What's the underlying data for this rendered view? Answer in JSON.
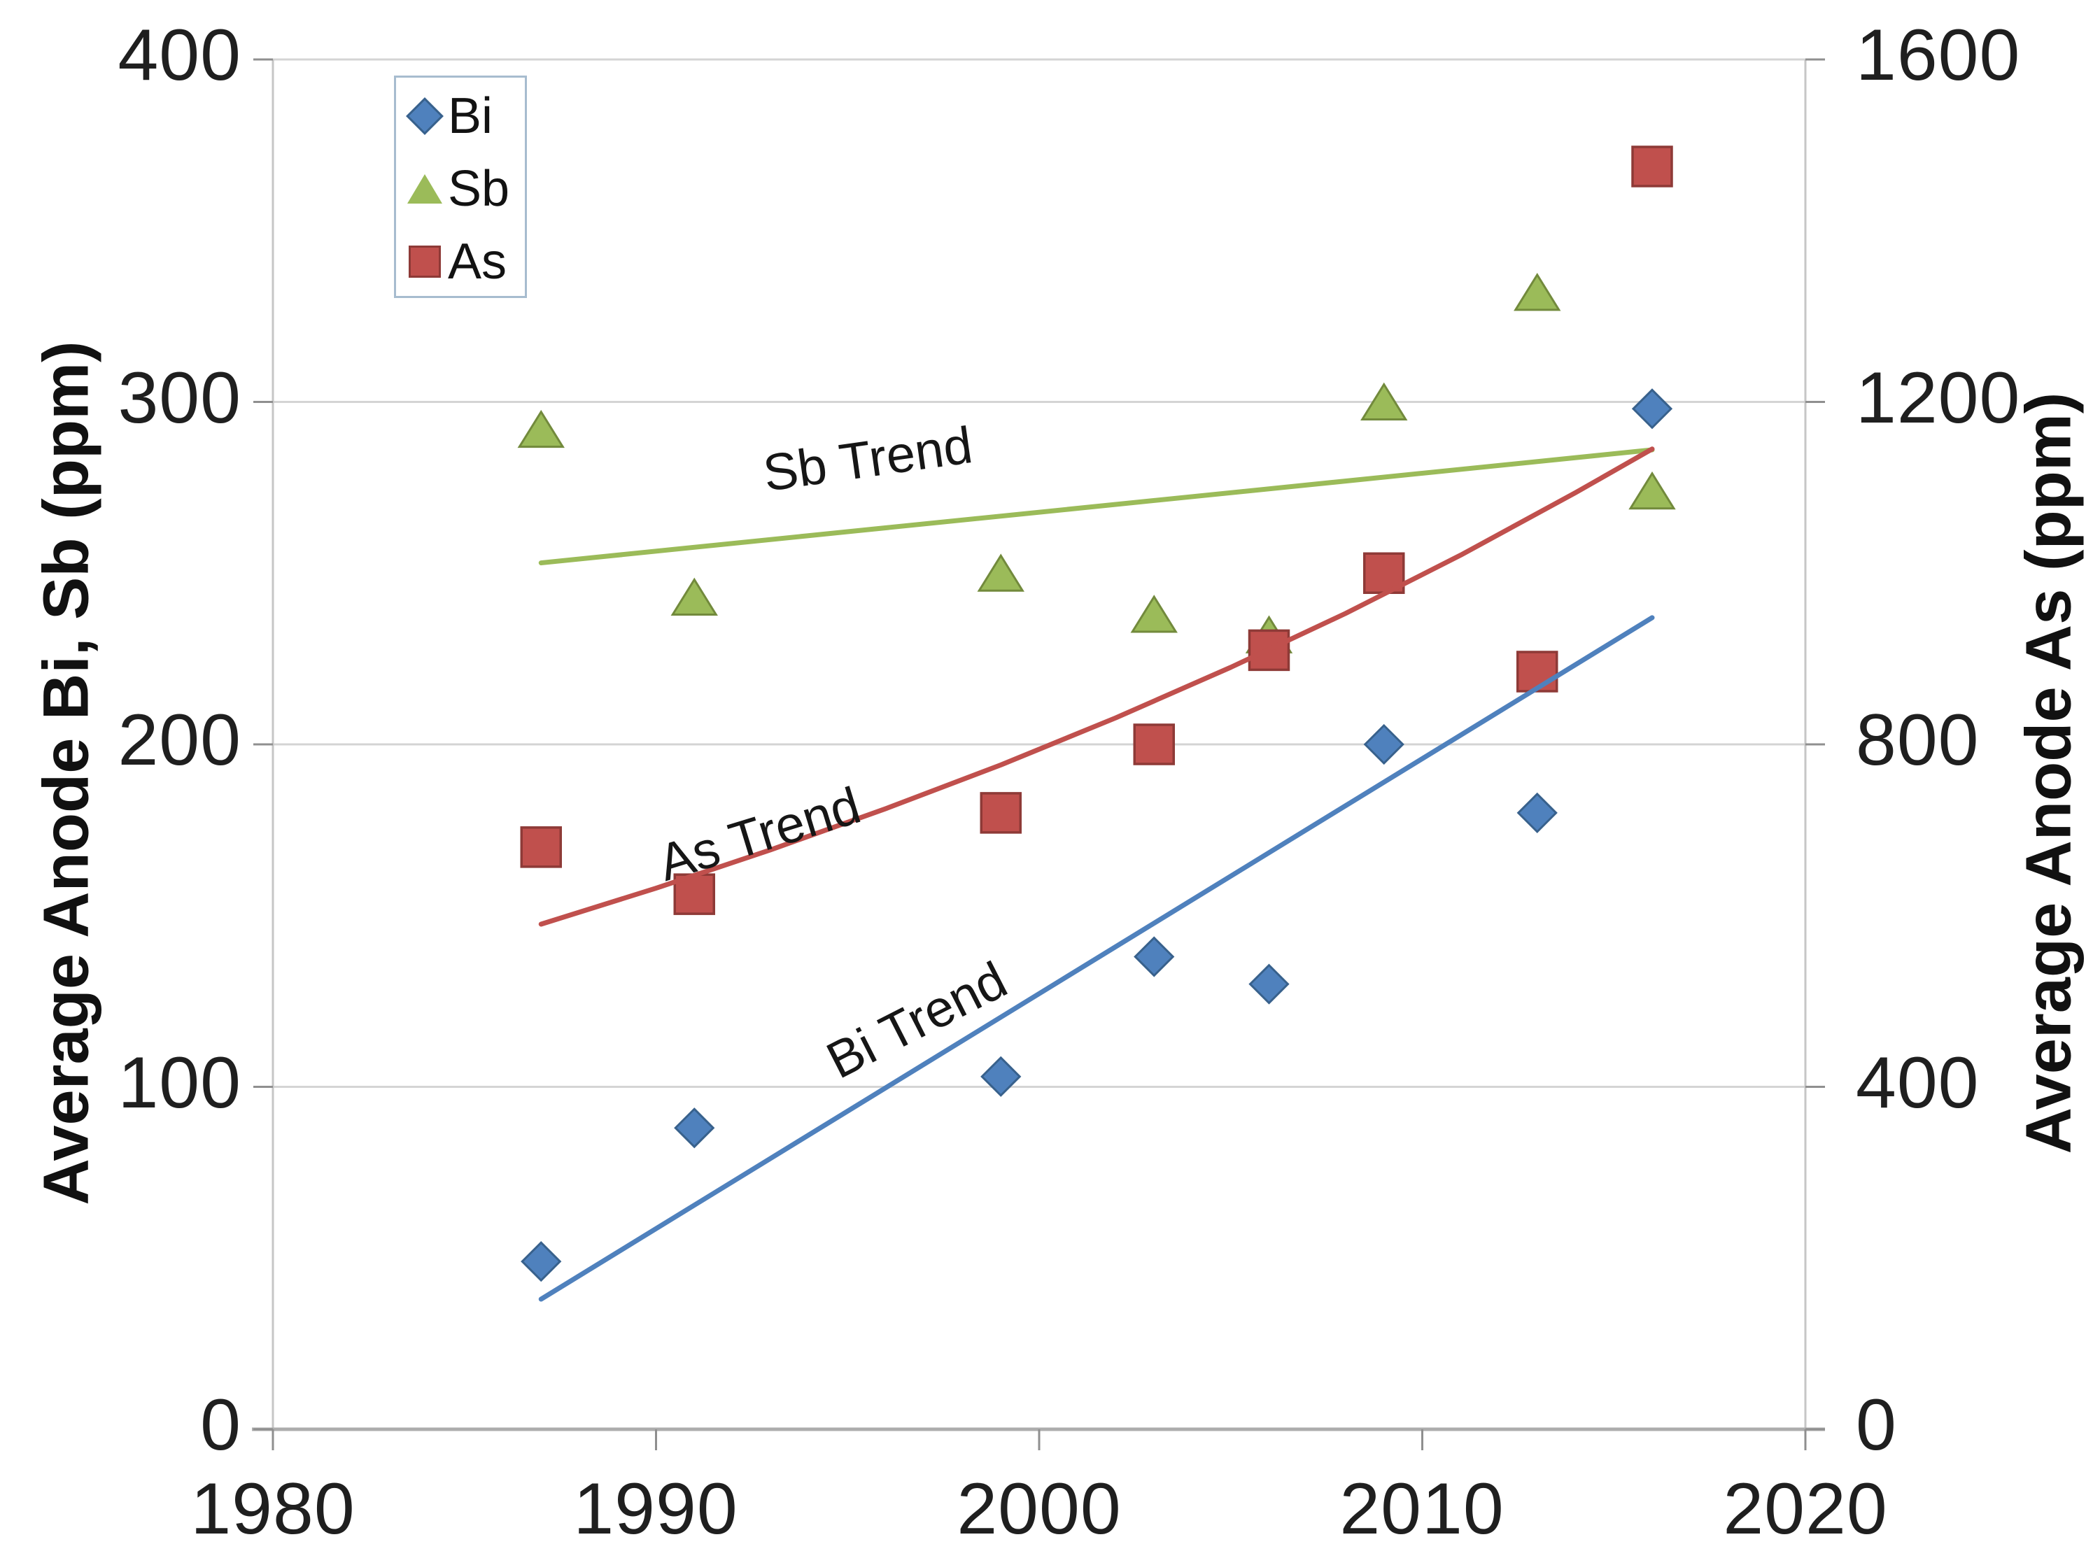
{
  "chart_data": {
    "type": "scatter",
    "title": "",
    "years": [
      1987,
      1991,
      1999,
      2003,
      2006,
      2009,
      2013,
      2016
    ],
    "series": [
      {
        "name": "Bi",
        "axis": "left",
        "marker": "diamond",
        "color": "#4F81BD",
        "edge": "#38618C",
        "values": [
          49,
          88,
          103,
          138,
          130,
          200,
          180,
          298
        ]
      },
      {
        "name": "Sb",
        "axis": "left",
        "marker": "triangle",
        "color": "#9BBB59",
        "edge": "#728A3C",
        "values": [
          292,
          243,
          250,
          238,
          232,
          300,
          332,
          274
        ]
      },
      {
        "name": "As",
        "axis": "right",
        "marker": "square",
        "color": "#C0504D",
        "edge": "#8E3A37",
        "values": [
          680,
          625,
          720,
          800,
          910,
          1000,
          885,
          1475
        ]
      }
    ],
    "trends": [
      {
        "name": "Sb Trend",
        "axis": "left",
        "color": "#9BBB59",
        "points": [
          [
            1987,
            253
          ],
          [
            2016,
            286
          ]
        ]
      },
      {
        "name": "As Trend",
        "axis": "right",
        "color": "#C0504D",
        "points": [
          [
            1987,
            590
          ],
          [
            1990,
            632
          ],
          [
            1993,
            677
          ],
          [
            1996,
            725
          ],
          [
            1999,
            776
          ],
          [
            2002,
            831
          ],
          [
            2005,
            890
          ],
          [
            2008,
            953
          ],
          [
            2011,
            1021
          ],
          [
            2014,
            1094
          ],
          [
            2016,
            1145
          ]
        ]
      },
      {
        "name": "Bi Trend",
        "axis": "left",
        "color": "#4F81BD",
        "points": [
          [
            1987,
            38
          ],
          [
            2016,
            237
          ]
        ]
      }
    ],
    "left_axis": {
      "label": "Average Anode Bi, Sb (ppm)",
      "ticks": [
        400,
        300,
        200,
        100,
        0
      ],
      "range": [
        0,
        400
      ]
    },
    "right_axis": {
      "label": "Average Anode As (ppm)",
      "ticks": [
        1600,
        1200,
        800,
        400,
        0
      ],
      "range": [
        0,
        1600
      ]
    },
    "x_axis": {
      "ticks": [
        1980,
        1990,
        2000,
        2010,
        2020
      ],
      "range": [
        1980,
        2020
      ]
    },
    "legend": {
      "items": [
        {
          "label": "Bi",
          "marker": "diamond",
          "color": "#4F81BD"
        },
        {
          "label": "Sb",
          "marker": "triangle",
          "color": "#9BBB59"
        },
        {
          "label": "As",
          "marker": "square",
          "color": "#C0504D"
        }
      ]
    },
    "grid_color": "#D4D4D4",
    "axis_color": "#ADADAD"
  }
}
